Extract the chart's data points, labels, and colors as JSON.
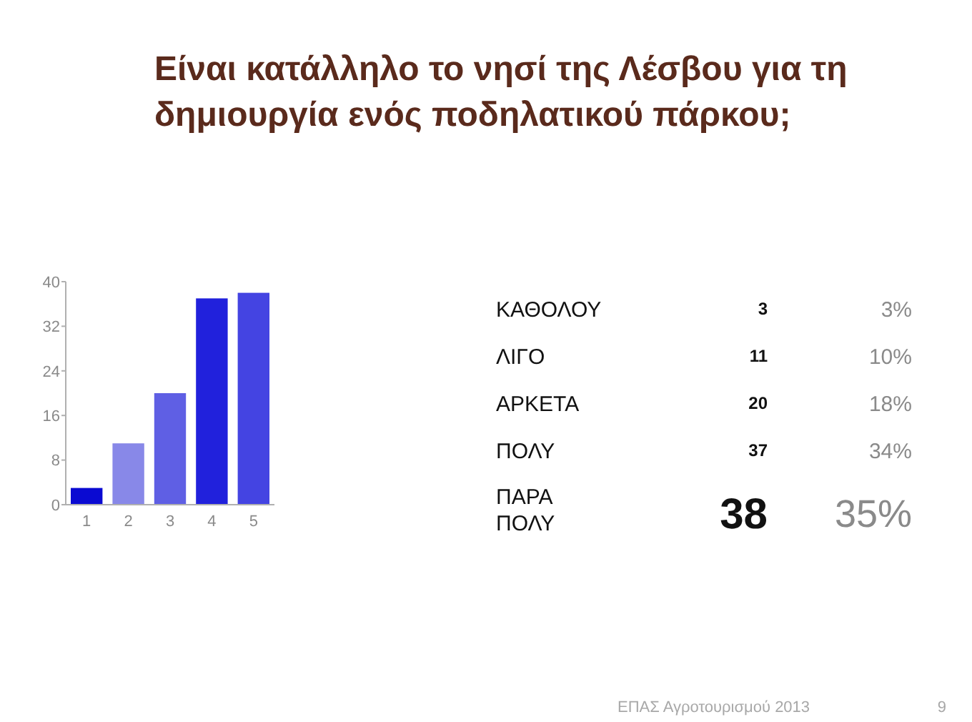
{
  "chart_data": [
    {
      "type": "bar",
      "title": "Είναι κατάλληλο το νησί της Λέσβου για τη δημιουργία ενός ποδηλατικού πάρκου;",
      "categories": [
        "1",
        "2",
        "3",
        "4",
        "5"
      ],
      "values": [
        3,
        11,
        20,
        37,
        38
      ],
      "colors": [
        "#0a0ad2",
        "#8888e8",
        "#5f5fe4",
        "#2121dc",
        "#4444e2"
      ],
      "ylim": [
        0,
        40
      ],
      "yticks": [
        0,
        8,
        16,
        24,
        32,
        40
      ],
      "annotations": [
        "ΕΠΑΣ Αγροτουρισμού 2013",
        "9"
      ]
    },
    {
      "type": "other",
      "categories": [
        "ΚΑΘΟΛΟΥ",
        "ΛΙΓΟ",
        "ΑΡΚΕΤΑ",
        "ΠΟΛΥ",
        "ΠΑΡΑ ΠΟΛΥ"
      ],
      "series": [
        {
          "values": [
            3,
            11,
            20,
            37,
            38
          ]
        },
        {
          "values": [
            3,
            10,
            18,
            34,
            35
          ],
          "value_labels": [
            "3%",
            "10%",
            "18%",
            "34%",
            "35%"
          ]
        }
      ],
      "data_labels": true
    }
  ]
}
